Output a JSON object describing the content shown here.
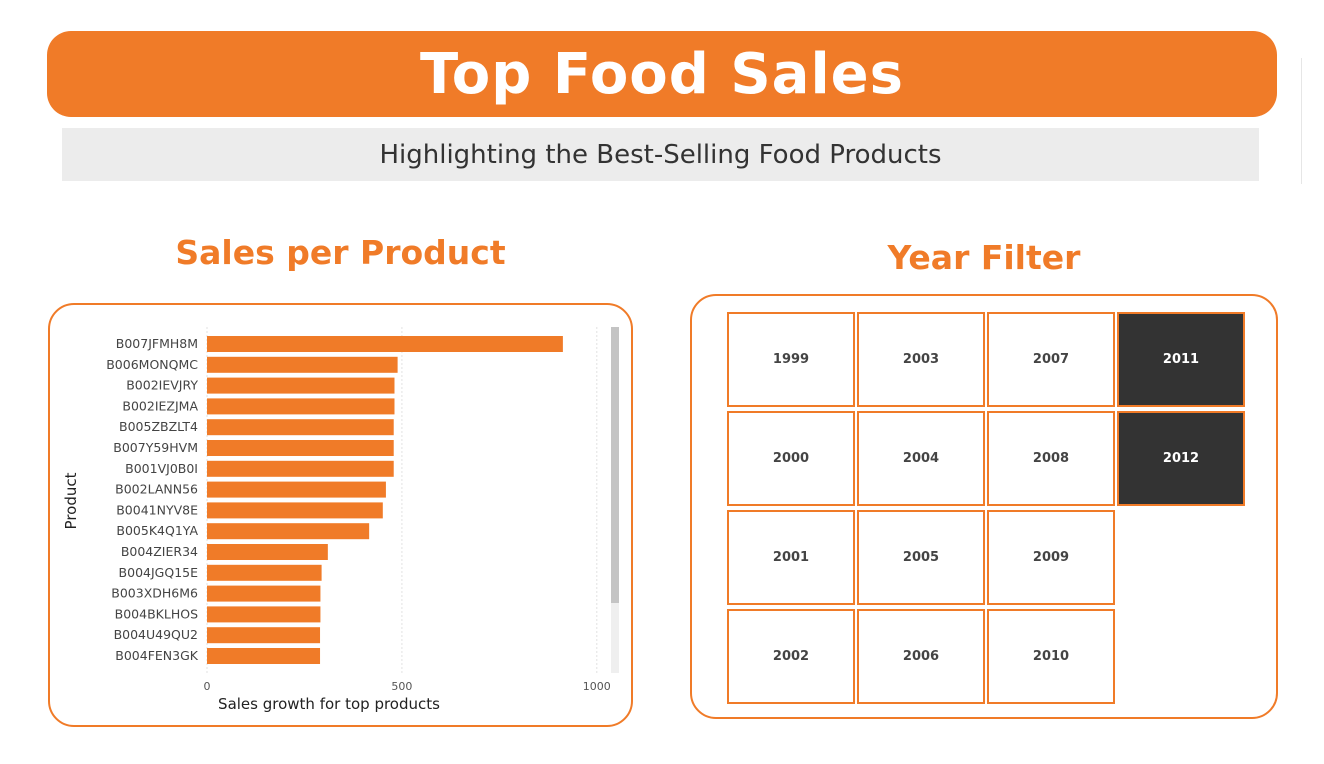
{
  "header": {
    "title": "Top Food Sales",
    "subtitle": "Highlighting the Best-Selling Food Products"
  },
  "chart_section": {
    "title": "Sales per Product"
  },
  "filter_section": {
    "title": "Year Filter",
    "columns": [
      [
        "1999",
        "2000",
        "2001",
        "2002"
      ],
      [
        "2003",
        "2004",
        "2005",
        "2006"
      ],
      [
        "2007",
        "2008",
        "2009",
        "2010"
      ],
      [
        "2011",
        "2012"
      ]
    ],
    "selected": [
      "2011",
      "2012"
    ]
  },
  "colors": {
    "accent": "#f07b28",
    "selected_bg": "#333333",
    "subtitle_bg": "#ececec"
  },
  "chart_data": {
    "type": "bar",
    "orientation": "horizontal",
    "xlabel": "Sales growth for top products",
    "ylabel": "Product",
    "xlim": [
      0,
      1050
    ],
    "xticks": [
      0,
      500,
      1000
    ],
    "grid": "vertical dotted",
    "categories": [
      "B007JFMH8M",
      "B006MONQMC",
      "B002IEVJRY",
      "B002IEZJMA",
      "B005ZBZLT4",
      "B007Y59HVM",
      "B001VJ0B0I",
      "B002LANN56",
      "B0041NYV8E",
      "B005K4Q1YA",
      "B004ZIER34",
      "B004JGQ15E",
      "B003XDH6M6",
      "B004BKLHOS",
      "B004U49QU2",
      "B004FEN3GK"
    ],
    "values": [
      913,
      489,
      481,
      481,
      479,
      479,
      479,
      459,
      451,
      416,
      310,
      294,
      291,
      291,
      290,
      290
    ],
    "color": "#f07b28"
  }
}
